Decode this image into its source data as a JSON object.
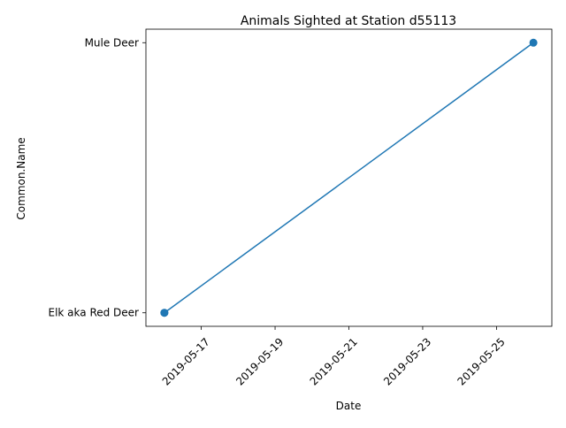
{
  "chart_data": {
    "type": "line",
    "title": "Animals Sighted at Station d55113",
    "xlabel": "Date",
    "ylabel": "Common.Name",
    "x_ticks": [
      "2019-05-17",
      "2019-05-19",
      "2019-05-21",
      "2019-05-23",
      "2019-05-25"
    ],
    "y_categories": [
      "Elk aka Red Deer",
      "Mule Deer"
    ],
    "series": [
      {
        "color": "#1f77b4",
        "marker": "circle",
        "points": [
          {
            "x": "2019-05-16",
            "y": "Elk aka Red Deer"
          },
          {
            "x": "2019-05-16",
            "y": "Elk aka Red Deer"
          },
          {
            "x": "2019-05-26",
            "y": "Mule Deer"
          }
        ]
      }
    ],
    "grid": false,
    "legend": "none"
  }
}
